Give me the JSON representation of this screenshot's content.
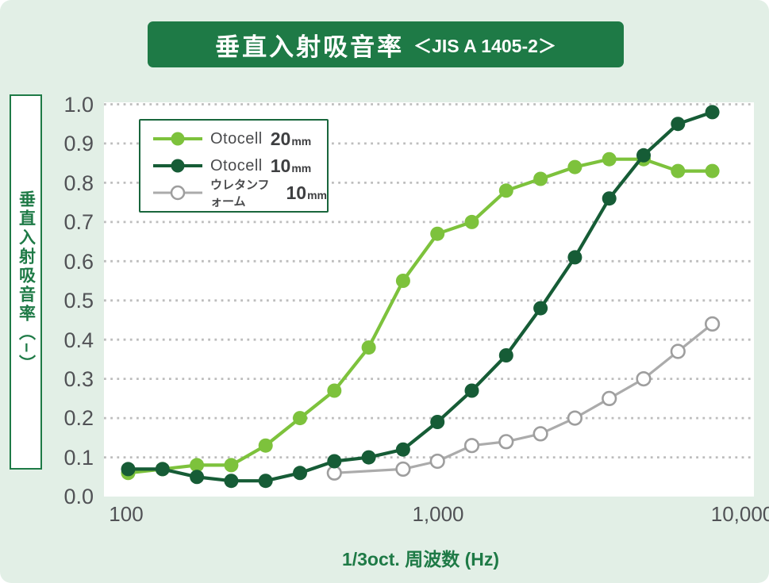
{
  "header": {
    "title": "垂直入射吸音率",
    "standard": "＜JIS A 1405-2＞"
  },
  "y_axis": {
    "label": "垂直入射吸音率（−）",
    "ticks": [
      "1.0",
      "0.9",
      "0.8",
      "0.7",
      "0.6",
      "0.5",
      "0.4",
      "0.3",
      "0.2",
      "0.1",
      "0.0"
    ]
  },
  "x_axis": {
    "label": "1/3oct. 周波数 (Hz)",
    "ticks": [
      "100",
      "1,000",
      "10,000"
    ]
  },
  "legend": [
    {
      "name": "Otocell",
      "size": "20",
      "unit": "mm",
      "color": "#7DC23C",
      "marker": "filled"
    },
    {
      "name": "Otocell",
      "size": "10",
      "unit": "mm",
      "color": "#165C36",
      "marker": "filled"
    },
    {
      "name": "ウレタンフォーム",
      "size": "10",
      "unit": "mm",
      "color": "#ABABAB",
      "marker": "open"
    }
  ],
  "colors": {
    "banner_green": "#1E7A46",
    "accent_text_green": "#1E7A46",
    "tick_text": "#515256",
    "gridline": "#BDBDBD",
    "page_background": "#E2EFE6",
    "plot_background": "#FFFFFF"
  },
  "chart_data": {
    "type": "line",
    "title": "垂直入射吸音率 ＜JIS A 1405-2＞",
    "xlabel": "1/3oct. 周波数 (Hz)",
    "ylabel": "垂直入射吸音率（−）",
    "x_scale": "log-like, equal spacing per 1/3-octave band",
    "x_tick_labels": [
      "100",
      "1,000",
      "10,000"
    ],
    "ylim": [
      0.0,
      1.0
    ],
    "y_step": 0.1,
    "grid": "horizontal dotted lines every 0.1",
    "legend_position": "upper left inside plot",
    "categories": [
      100,
      125,
      160,
      200,
      250,
      315,
      400,
      500,
      630,
      800,
      1000,
      1250,
      1600,
      2000,
      2500,
      3150,
      4000,
      5000
    ],
    "series": [
      {
        "name": "Otocell 20mm",
        "color": "#7DC23C",
        "marker": "filled-circle",
        "values": [
          0.06,
          0.07,
          0.08,
          0.08,
          0.13,
          0.2,
          0.27,
          0.38,
          0.55,
          0.67,
          0.7,
          0.78,
          0.81,
          0.84,
          0.86,
          0.86,
          0.83,
          0.83
        ]
      },
      {
        "name": "Otocell 10mm",
        "color": "#165C36",
        "marker": "filled-circle",
        "values": [
          0.07,
          0.07,
          0.05,
          0.04,
          0.04,
          0.06,
          0.09,
          0.1,
          0.12,
          0.19,
          0.27,
          0.36,
          0.48,
          0.61,
          0.76,
          0.87,
          0.95,
          0.98
        ]
      },
      {
        "name": "ウレタンフォーム 10mm",
        "color": "#ABABAB",
        "marker": "open-circle",
        "values": [
          null,
          null,
          null,
          null,
          null,
          null,
          0.06,
          null,
          0.07,
          0.09,
          0.13,
          0.14,
          0.16,
          0.2,
          0.25,
          0.3,
          0.37,
          0.44
        ]
      }
    ]
  }
}
